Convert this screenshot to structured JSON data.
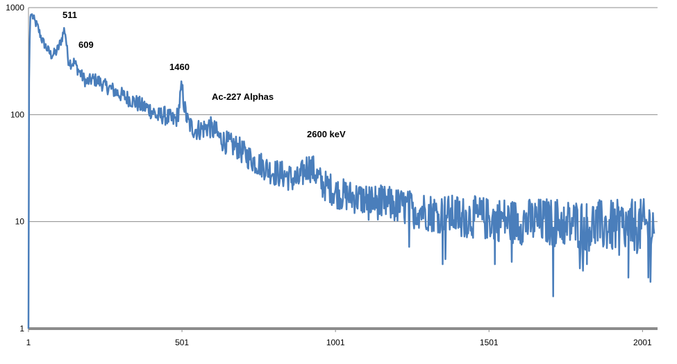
{
  "chart_data": {
    "type": "line",
    "title": "",
    "xlabel": "",
    "ylabel": "",
    "x_scale": "linear",
    "y_scale": "log",
    "xlim": [
      1,
      2050
    ],
    "ylim": [
      1,
      1000
    ],
    "x_ticks": [
      "1",
      "501",
      "1001",
      "1501",
      "2001"
    ],
    "y_ticks": [
      "1",
      "10",
      "100",
      "1000"
    ],
    "grid": "horizontal major gridlines",
    "legend": "none",
    "colors": {
      "series": "#4a7ebb",
      "grid": "#8c8c8c",
      "axis": "#8c8c8c"
    },
    "annotations": [
      {
        "text": "511"
      },
      {
        "text": "609"
      },
      {
        "text": "1460"
      },
      {
        "text": "Ac-227 Alphas"
      },
      {
        "text": "2600 keV"
      }
    ],
    "series": [
      {
        "x": [
          1,
          3,
          6,
          10,
          20,
          30,
          45,
          60,
          75,
          90,
          100,
          110,
          118,
          122,
          126,
          130,
          140,
          150,
          160,
          175,
          190,
          210,
          230,
          250,
          270,
          290,
          310,
          330,
          350,
          370,
          390,
          410,
          420,
          440,
          460,
          470,
          480,
          487,
          492,
          496,
          500,
          504,
          508,
          512,
          520,
          535,
          550,
          570,
          590,
          600,
          610,
          620,
          640,
          660,
          680,
          700,
          720,
          740,
          760,
          780,
          800,
          820,
          840,
          860,
          880,
          900,
          910,
          920,
          930,
          940,
          950,
          960,
          980,
          1000,
          1020,
          1040,
          1060,
          1080,
          1100,
          1120,
          1150,
          1180,
          1200,
          1230,
          1250,
          1270,
          1300,
          1320,
          1350,
          1370,
          1400,
          1420,
          1450,
          1470,
          1500,
          1520,
          1550,
          1570,
          1600,
          1620,
          1650,
          1670,
          1700,
          1710,
          1720,
          1740,
          1760,
          1780,
          1800,
          1820,
          1850,
          1870,
          1900,
          1920,
          1940,
          1955,
          1970,
          1990,
          2000,
          2010,
          2020,
          2030,
          2040
        ],
        "y": [
          1,
          200,
          800,
          880,
          760,
          670,
          500,
          420,
          360,
          380,
          430,
          520,
          630,
          560,
          420,
          330,
          300,
          310,
          270,
          230,
          200,
          215,
          205,
          185,
          175,
          160,
          150,
          140,
          130,
          120,
          115,
          105,
          95,
          100,
          92,
          88,
          90,
          98,
          120,
          150,
          175,
          155,
          125,
          105,
          85,
          75,
          72,
          74,
          78,
          72,
          70,
          62,
          56,
          52,
          50,
          44,
          40,
          36,
          34,
          31,
          29,
          28,
          27,
          25,
          24,
          30,
          33,
          32,
          30,
          27,
          24,
          22,
          21,
          19,
          18,
          17.5,
          17,
          16.5,
          16,
          15.5,
          15,
          14.5,
          14,
          13.5,
          13,
          13,
          12.5,
          12,
          12,
          11.5,
          11.5,
          11,
          11,
          11,
          10.5,
          10.5,
          10.5,
          10,
          10,
          10,
          10,
          10,
          10,
          9.5,
          10,
          10,
          9.5,
          9.5,
          9.5,
          9,
          9.5,
          9,
          9,
          9,
          9,
          9,
          9,
          9,
          9,
          9,
          9,
          9,
          9
        ]
      }
    ],
    "dips": [
      {
        "x": 1350,
        "y": 4
      },
      {
        "x": 1520,
        "y": 4
      },
      {
        "x": 1710,
        "y": 2
      },
      {
        "x": 1820,
        "y": 4
      },
      {
        "x": 1955,
        "y": 3
      },
      {
        "x": 2020,
        "y": 3
      }
    ]
  }
}
